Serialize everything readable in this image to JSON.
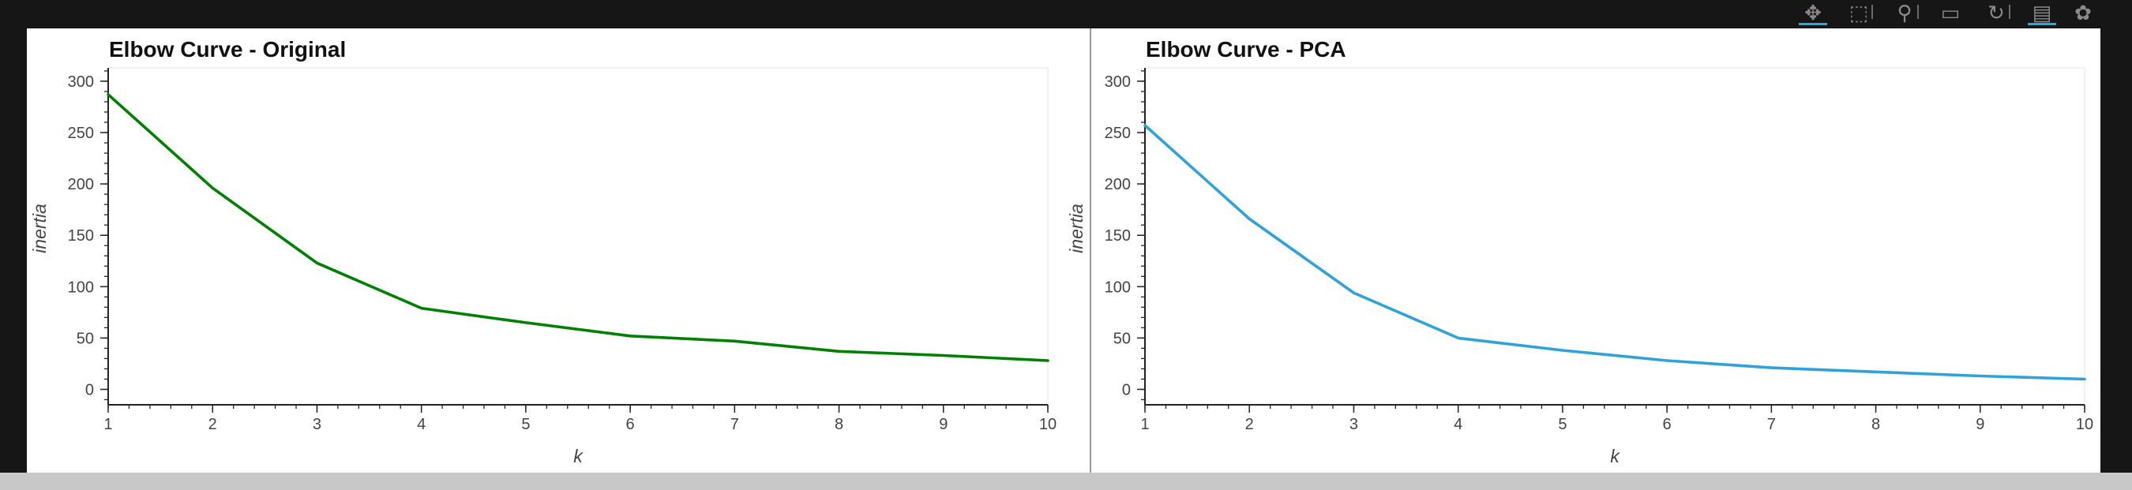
{
  "toolbar": {
    "tools": [
      {
        "name": "pan-tool-icon",
        "glyph": "✥",
        "active": true
      },
      {
        "name": "box-zoom-tool-icon",
        "glyph": "⬚",
        "active": false
      },
      {
        "name": "wheel-zoom-tool-icon",
        "glyph": "⚲",
        "active": false
      },
      {
        "name": "save-tool-icon",
        "glyph": "▭",
        "active": false
      },
      {
        "name": "reset-tool-icon",
        "glyph": "↻",
        "active": false
      },
      {
        "name": "hover-tool-icon",
        "glyph": "▤",
        "active": true
      },
      {
        "name": "bokeh-logo-icon",
        "glyph": "✿",
        "active": false
      }
    ]
  },
  "chart_data": [
    {
      "type": "line",
      "title": "Elbow Curve - Original",
      "xlabel": "k",
      "ylabel": "inertia",
      "x": [
        1,
        2,
        3,
        4,
        5,
        6,
        7,
        8,
        9,
        10
      ],
      "series": [
        {
          "values": [
            287,
            196,
            123,
            79,
            65,
            52,
            47,
            37,
            33,
            28
          ],
          "color": "#008000"
        }
      ],
      "xlim": [
        1,
        10
      ],
      "ylim": [
        -15,
        313
      ],
      "xticks": [
        "1",
        "2",
        "3",
        "4",
        "5",
        "6",
        "7",
        "8",
        "9",
        "10"
      ],
      "yticks": [
        "0",
        "50",
        "100",
        "150",
        "200",
        "250",
        "300"
      ],
      "grid": false
    },
    {
      "type": "line",
      "title": "Elbow Curve - PCA",
      "xlabel": "k",
      "ylabel": "inertia",
      "x": [
        1,
        2,
        3,
        4,
        5,
        6,
        7,
        8,
        9,
        10
      ],
      "series": [
        {
          "values": [
            257,
            166,
            94,
            50,
            38,
            28,
            21,
            17,
            13,
            10
          ],
          "color": "#30a2da"
        }
      ],
      "xlim": [
        1,
        10
      ],
      "ylim": [
        -15,
        313
      ],
      "xticks": [
        "1",
        "2",
        "3",
        "4",
        "5",
        "6",
        "7",
        "8",
        "9",
        "10"
      ],
      "yticks": [
        "0",
        "50",
        "100",
        "150",
        "200",
        "250",
        "300"
      ],
      "grid": false
    }
  ]
}
